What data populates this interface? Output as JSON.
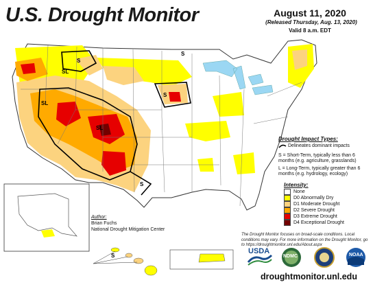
{
  "header": {
    "title": "U.S. Drought Monitor",
    "date": "August 11, 2020",
    "released": "(Released Thursday, Aug. 13, 2020)",
    "valid": "Valid 8 a.m. EDT"
  },
  "impact_types": {
    "title": "Drought Impact Types:",
    "delineates": "Delineates dominant impacts",
    "short_term": "S = Short-Term, typically less than 6 months (e.g. agriculture, grasslands)",
    "long_term": "L = Long-Term, typically greater than 6 months (e.g. hydrology, ecology)"
  },
  "intensity": {
    "title": "Intensity:",
    "levels": [
      {
        "label": "None",
        "color": "#ffffff"
      },
      {
        "label": "D0 Abnormally Dry",
        "color": "#ffff00"
      },
      {
        "label": "D1 Moderate Drought",
        "color": "#fcd37f"
      },
      {
        "label": "D2 Severe Drought",
        "color": "#ffaa00"
      },
      {
        "label": "D3 Extreme Drought",
        "color": "#e60000"
      },
      {
        "label": "D4 Exceptional Drought",
        "color": "#730000"
      }
    ]
  },
  "author": {
    "label": "Author:",
    "name": "Brian Fuchs",
    "org": "National Drought Mitigation Center"
  },
  "footnote": "The Drought Monitor focuses on broad-scale conditions. Local conditions may vary. For more information on the Drought Monitor, go to https://droughtmonitor.unl.edu/About.aspx",
  "logos": {
    "usda": "USDA",
    "ndmc": "NDMC",
    "noaa": "NOAA"
  },
  "url": "droughtmonitor.unl.edu",
  "map_labels": {
    "s": "S",
    "sl": "SL",
    "l": "L"
  },
  "icons": {
    "impact_line": "impact-boundary-line-icon"
  }
}
